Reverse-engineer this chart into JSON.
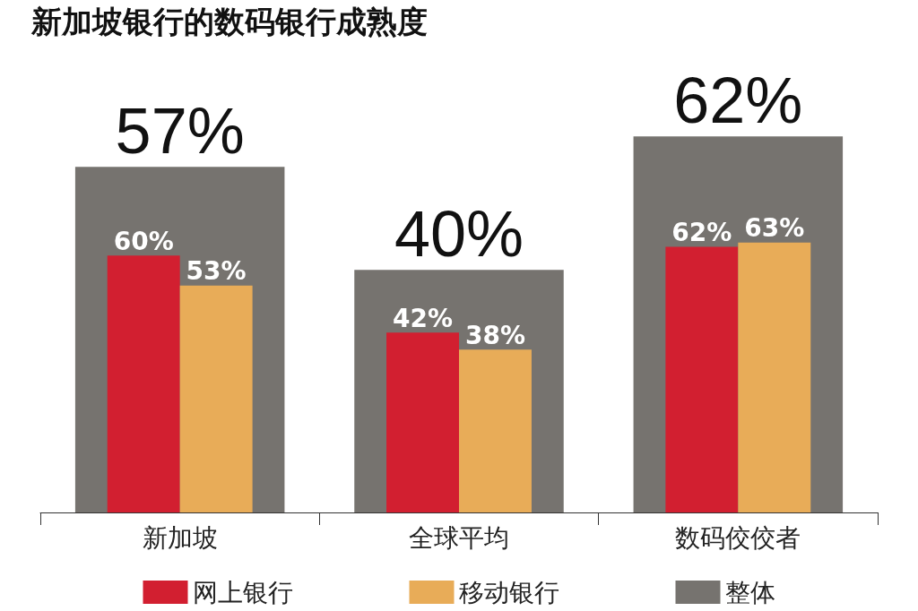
{
  "chart_data": {
    "type": "bar",
    "title": "新加坡银行的数码银行成熟度",
    "categories": [
      "新加坡",
      "全球平均",
      "数码佼佼者"
    ],
    "series": [
      {
        "name": "网上银行",
        "color": "#d21f30",
        "values": [
          60,
          42,
          62
        ],
        "value_labels": [
          "60%",
          "42%",
          "62%"
        ]
      },
      {
        "name": "移动银行",
        "color": "#e8ac58",
        "values": [
          53,
          38,
          63
        ],
        "value_labels": [
          "53%",
          "38%",
          "63%"
        ]
      },
      {
        "name": "整体",
        "color": "#76736f",
        "values": [
          57,
          40,
          62
        ],
        "value_labels": [
          "57%",
          "40%",
          "62%"
        ],
        "axis": "y2"
      }
    ],
    "legend": "bottom"
  }
}
